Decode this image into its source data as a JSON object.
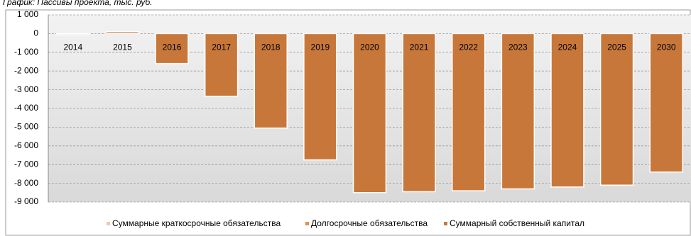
{
  "chart_data": {
    "type": "bar",
    "title": "График: Пассивы проекта, тыс. руб.",
    "categories": [
      "2014",
      "2015",
      "2016",
      "2017",
      "2018",
      "2019",
      "2020",
      "2021",
      "2022",
      "2023",
      "2024",
      "2025",
      "2030"
    ],
    "series": [
      {
        "name": "Суммарные краткосрочные обязательства",
        "color": "#f2c6b4",
        "values": [
          0,
          0,
          0,
          0,
          0,
          0,
          0,
          0,
          0,
          0,
          0,
          0,
          0
        ]
      },
      {
        "name": "Долгосрочные обязательства",
        "color": "#e3914c",
        "values": [
          0,
          0,
          0,
          0,
          0,
          0,
          0,
          0,
          0,
          0,
          0,
          0,
          0
        ]
      },
      {
        "name": "Суммарный собственный капитал",
        "color": "#c8773a",
        "values": [
          -60,
          100,
          -1600,
          -3350,
          -5050,
          -6750,
          -8500,
          -8450,
          -8400,
          -8300,
          -8200,
          -8100,
          -7400
        ]
      }
    ],
    "ylim": [
      -9000,
      1000
    ],
    "yticks": [
      {
        "value": 1000,
        "label": "1 000"
      },
      0,
      {
        "value": -1000,
        "label": "-1 000"
      },
      {
        "value": -2000,
        "label": "-2 000"
      },
      {
        "value": -3000,
        "label": "-3 000"
      },
      {
        "value": -4000,
        "label": "-4 000"
      },
      {
        "value": -5000,
        "label": "-5 000"
      },
      {
        "value": -6000,
        "label": "-6 000"
      },
      {
        "value": -7000,
        "label": "-7 000"
      },
      {
        "value": -8000,
        "label": "-8 000"
      },
      {
        "value": -9000,
        "label": "-9 000"
      }
    ],
    "grid": true,
    "stacked": true,
    "legend": "bottom"
  }
}
